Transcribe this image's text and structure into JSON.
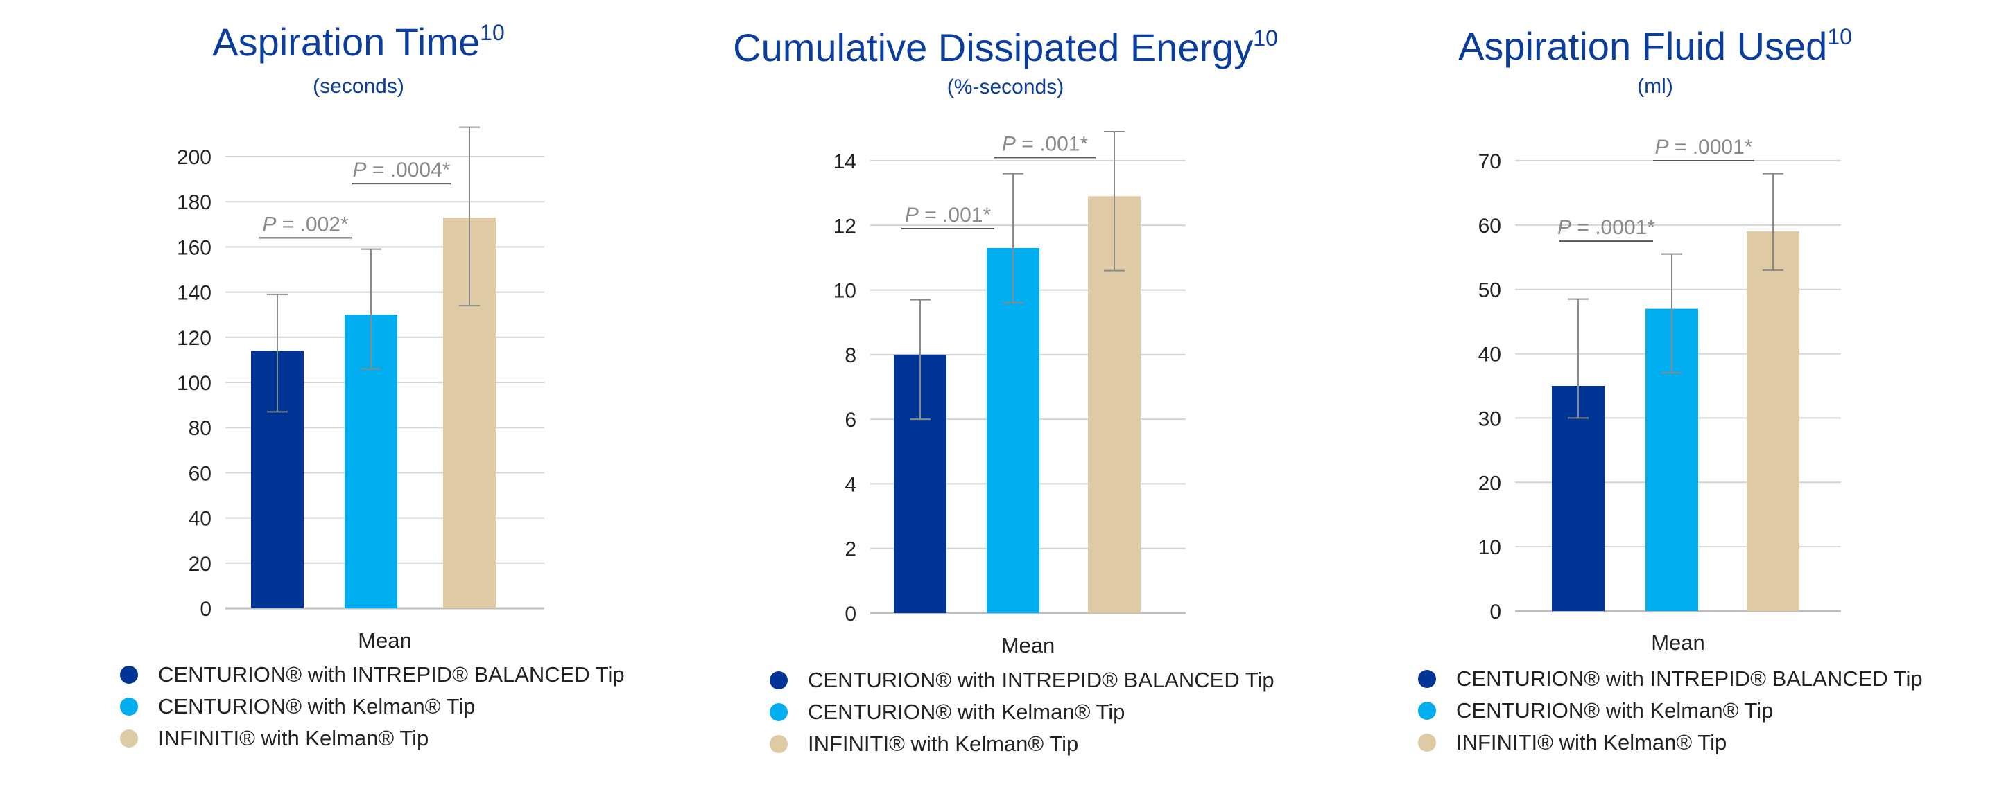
{
  "colors": {
    "title": "#0a3d9c",
    "axis_text": "#222222",
    "grid": "#d4d4d4",
    "error_bar": "#8a8a8a",
    "pvalue_text": "#8a8a8a"
  },
  "series_legend": [
    {
      "name": "CENTURION® with INTREPID® BALANCED Tip",
      "color": "#003595"
    },
    {
      "name": "CENTURION® with Kelman® Tip",
      "color": "#00aeef"
    },
    {
      "name": "INFINITI® with Kelman® Tip",
      "color": "#decaa5"
    }
  ],
  "chart_data": [
    {
      "type": "bar",
      "title": "Aspiration Time",
      "title_superscript": "10",
      "subtitle": "(seconds)",
      "xlabel": "Mean",
      "ylabel": "",
      "ylim": [
        0,
        200
      ],
      "yticks": [
        0,
        20,
        40,
        60,
        80,
        100,
        120,
        140,
        160,
        180,
        200
      ],
      "categories": [
        "CENTURION® with INTREPID® BALANCED Tip",
        "CENTURION® with Kelman® Tip",
        "INFINITI® with Kelman® Tip"
      ],
      "values": [
        114,
        130,
        173
      ],
      "error_low": [
        87,
        106,
        134
      ],
      "error_high": [
        139,
        159,
        213
      ],
      "comparisons": [
        {
          "from": 0,
          "to": 1,
          "p_label": "P",
          "p_value": " = .002*",
          "y": 164
        },
        {
          "from": 1,
          "to": 2,
          "p_label": "P",
          "p_value": " = .0004*",
          "y": 188
        }
      ]
    },
    {
      "type": "bar",
      "title": "Cumulative Dissipated Energy",
      "title_superscript": "10",
      "subtitle": "(%-seconds)",
      "xlabel": "Mean",
      "ylabel": "",
      "ylim": [
        0,
        14
      ],
      "yticks": [
        0,
        2,
        4,
        6,
        8,
        10,
        12,
        14
      ],
      "categories": [
        "CENTURION® with INTREPID® BALANCED Tip",
        "CENTURION® with Kelman® Tip",
        "INFINITI® with Kelman® Tip"
      ],
      "values": [
        8.0,
        11.3,
        12.9
      ],
      "error_low": [
        6.0,
        9.6,
        10.6
      ],
      "error_high": [
        9.7,
        13.6,
        14.9
      ],
      "comparisons": [
        {
          "from": 0,
          "to": 1,
          "p_label": "P",
          "p_value": " = .001*",
          "y": 11.9
        },
        {
          "from": 1,
          "to": 2,
          "p_label": "P",
          "p_value": " = .001*",
          "y": 14.1
        }
      ]
    },
    {
      "type": "bar",
      "title": "Aspiration Fluid Used",
      "title_superscript": "10",
      "subtitle": "(ml)",
      "xlabel": "Mean",
      "ylabel": "",
      "ylim": [
        0,
        70
      ],
      "yticks": [
        0,
        10,
        20,
        30,
        40,
        50,
        60,
        70
      ],
      "categories": [
        "CENTURION® with INTREPID® BALANCED Tip",
        "CENTURION® with Kelman® Tip",
        "INFINITI® with Kelman® Tip"
      ],
      "values": [
        35,
        47,
        59
      ],
      "error_low": [
        30,
        37,
        53
      ],
      "error_high": [
        48.5,
        55.5,
        68
      ],
      "comparisons": [
        {
          "from": 0,
          "to": 1,
          "p_label": "P",
          "p_value": " = .0001*",
          "y": 57.5
        },
        {
          "from": 1,
          "to": 2,
          "p_label": "P",
          "p_value": " = .0001*",
          "y": 70
        }
      ]
    }
  ]
}
